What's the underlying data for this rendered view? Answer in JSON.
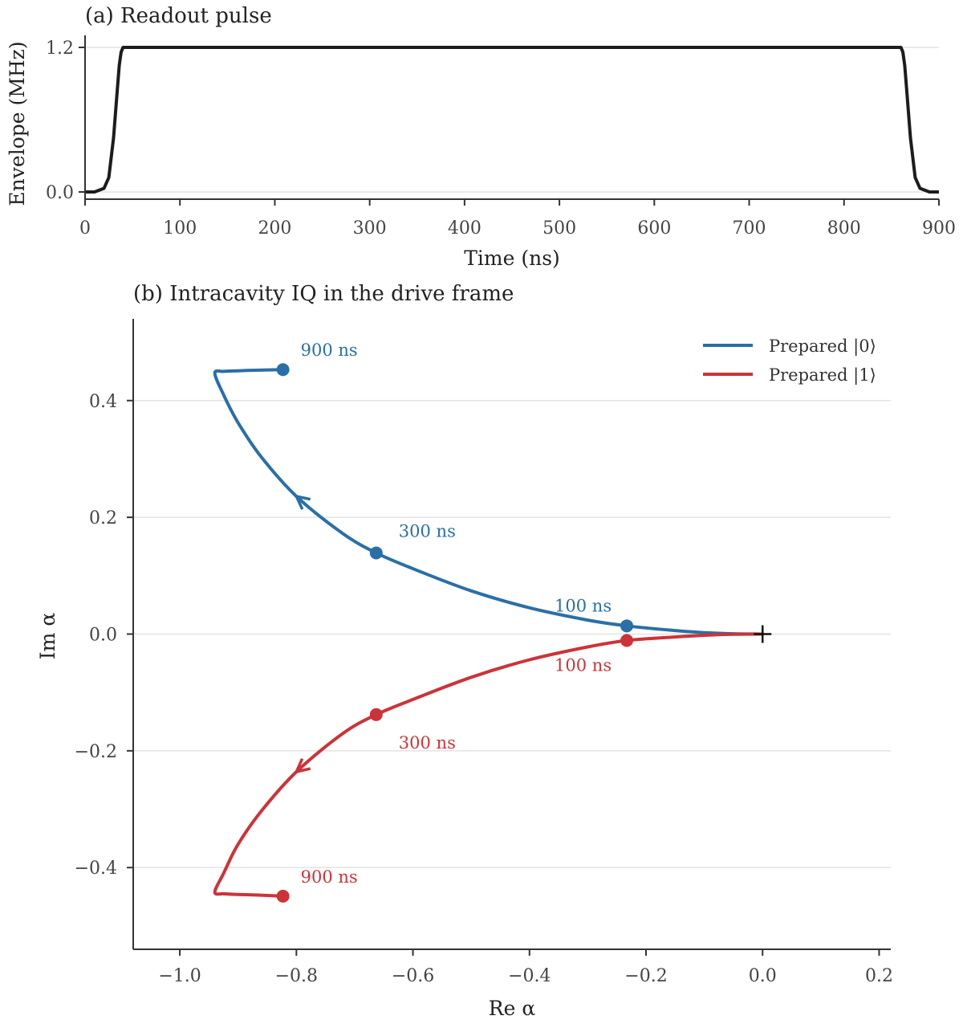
{
  "colors": {
    "blue": "#2a6fa8",
    "red": "#cc3338",
    "pulse": "#1c1c1c",
    "grid": "#e3e3e3",
    "axis": "#333333"
  },
  "chart_data": [
    {
      "type": "line",
      "title": "(a) Readout pulse",
      "xlabel": "Time (ns)",
      "ylabel": "Envelope (MHz)",
      "xlim": [
        0,
        900
      ],
      "ylim": [
        -0.06,
        1.3
      ],
      "xticks": [
        0,
        100,
        200,
        300,
        400,
        500,
        600,
        700,
        800,
        900
      ],
      "xtick_labels": [
        "0",
        "100",
        "200",
        "300",
        "400",
        "500",
        "600",
        "700",
        "800",
        "900"
      ],
      "yticks": [
        0.0,
        1.2
      ],
      "ytick_labels": [
        "0.0",
        "1.2"
      ],
      "grid": "y",
      "series": [
        {
          "x": [
            0,
            10,
            20,
            25,
            30,
            34,
            36,
            38,
            40,
            860,
            862,
            864,
            866,
            870,
            875,
            880,
            890,
            900
          ],
          "y": [
            0,
            0,
            0.03,
            0.12,
            0.45,
            0.85,
            1.05,
            1.16,
            1.2,
            1.2,
            1.16,
            1.05,
            0.85,
            0.45,
            0.12,
            0.03,
            0,
            0
          ]
        }
      ]
    },
    {
      "type": "line",
      "title": "(b) Intracavity IQ in the drive frame",
      "xlabel": "Re α",
      "ylabel": "Im α",
      "xlim": [
        -1.08,
        0.22
      ],
      "ylim": [
        -0.54,
        0.54
      ],
      "xticks": [
        -1.0,
        -0.8,
        -0.6,
        -0.4,
        -0.2,
        0.0,
        0.2
      ],
      "xtick_labels": [
        "−1.0",
        "−0.8",
        "−0.6",
        "−0.4",
        "−0.2",
        "0.0",
        "0.2"
      ],
      "yticks": [
        -0.4,
        -0.2,
        0.0,
        0.2,
        0.4
      ],
      "ytick_labels": [
        "−0.4",
        "−0.2",
        "0.0",
        "0.2",
        "0.4"
      ],
      "grid": "y",
      "legend": "top-right",
      "origin_marker": [
        0.0,
        0.0
      ],
      "series": [
        {
          "name": "Prepared |0⟩",
          "color": "blue",
          "x": [
            0.0,
            -0.05,
            -0.1,
            -0.15,
            -0.233,
            -0.3,
            -0.4,
            -0.5,
            -0.6,
            -0.663,
            -0.72,
            -0.8,
            -0.86,
            -0.9,
            -0.925,
            -0.94,
            -0.925,
            -0.9,
            -0.87,
            -0.823
          ],
          "y": [
            0.0,
            0.0006,
            0.0025,
            0.006,
            0.014,
            0.024,
            0.045,
            0.074,
            0.112,
            0.139,
            0.172,
            0.236,
            0.303,
            0.362,
            0.41,
            0.447,
            0.45,
            0.451,
            0.452,
            0.453
          ],
          "markers": [
            {
              "x": -0.233,
              "y": 0.014,
              "label": "100 ns"
            },
            {
              "x": -0.663,
              "y": 0.139,
              "label": "300 ns"
            },
            {
              "x": -0.823,
              "y": 0.453,
              "label": "900 ns"
            }
          ],
          "arrow_at": {
            "x": -0.8,
            "y": 0.236
          }
        },
        {
          "name": "Prepared |1⟩",
          "color": "red",
          "x": [
            0.0,
            -0.05,
            -0.1,
            -0.15,
            -0.233,
            -0.3,
            -0.4,
            -0.5,
            -0.6,
            -0.663,
            -0.72,
            -0.8,
            -0.86,
            -0.9,
            -0.925,
            -0.94,
            -0.925,
            -0.9,
            -0.87,
            -0.823
          ],
          "y": [
            0.0,
            -0.0004,
            -0.002,
            -0.005,
            -0.011,
            -0.022,
            -0.044,
            -0.074,
            -0.112,
            -0.138,
            -0.17,
            -0.236,
            -0.303,
            -0.36,
            -0.41,
            -0.442,
            -0.445,
            -0.446,
            -0.447,
            -0.449
          ],
          "markers": [
            {
              "x": -0.233,
              "y": -0.011,
              "label": "100 ns"
            },
            {
              "x": -0.663,
              "y": -0.138,
              "label": "300 ns"
            },
            {
              "x": -0.823,
              "y": -0.449,
              "label": "900 ns"
            }
          ],
          "arrow_at": {
            "x": -0.8,
            "y": -0.236
          }
        }
      ]
    }
  ]
}
